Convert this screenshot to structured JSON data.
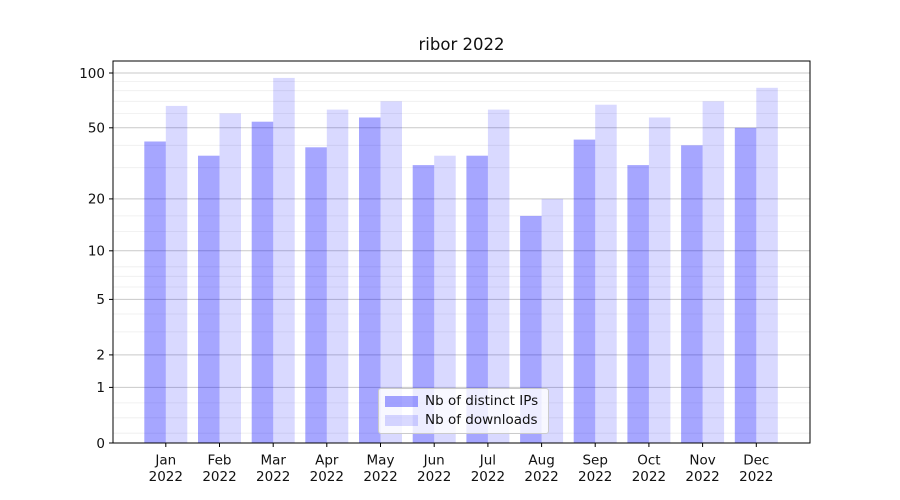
{
  "chart_data": {
    "type": "bar",
    "title": "ribor 2022",
    "categories": [
      "Jan",
      "Feb",
      "Mar",
      "Apr",
      "May",
      "Jun",
      "Jul",
      "Aug",
      "Sep",
      "Oct",
      "Nov",
      "Dec"
    ],
    "year_label": "2022",
    "series": [
      {
        "name": "Nb of distinct IPs",
        "color": "#0000ff",
        "opacity": 0.35,
        "values": [
          42,
          35,
          54,
          39,
          57,
          31,
          35,
          16,
          43,
          31,
          40,
          50
        ]
      },
      {
        "name": "Nb of downloads",
        "color": "#0000ff",
        "opacity": 0.15,
        "values": [
          66,
          60,
          94,
          63,
          70,
          35,
          63,
          20,
          67,
          57,
          70,
          83
        ]
      }
    ],
    "y_scale": "log10(1+v)",
    "y_ticks": [
      0,
      1,
      2,
      5,
      10,
      20,
      50,
      100
    ],
    "y_minor_ticks": [
      0.13,
      0.37,
      0.65,
      3,
      4,
      6,
      7,
      8,
      13,
      16,
      30,
      40,
      60,
      70,
      80,
      90
    ],
    "ylim": [
      0,
      115
    ],
    "grid": true,
    "legend": {
      "location": "lower center"
    },
    "colors": {
      "major_grid": "#c9c9c9",
      "minor_grid": "#ededed",
      "axis": "#000000",
      "text": "#111111"
    }
  }
}
